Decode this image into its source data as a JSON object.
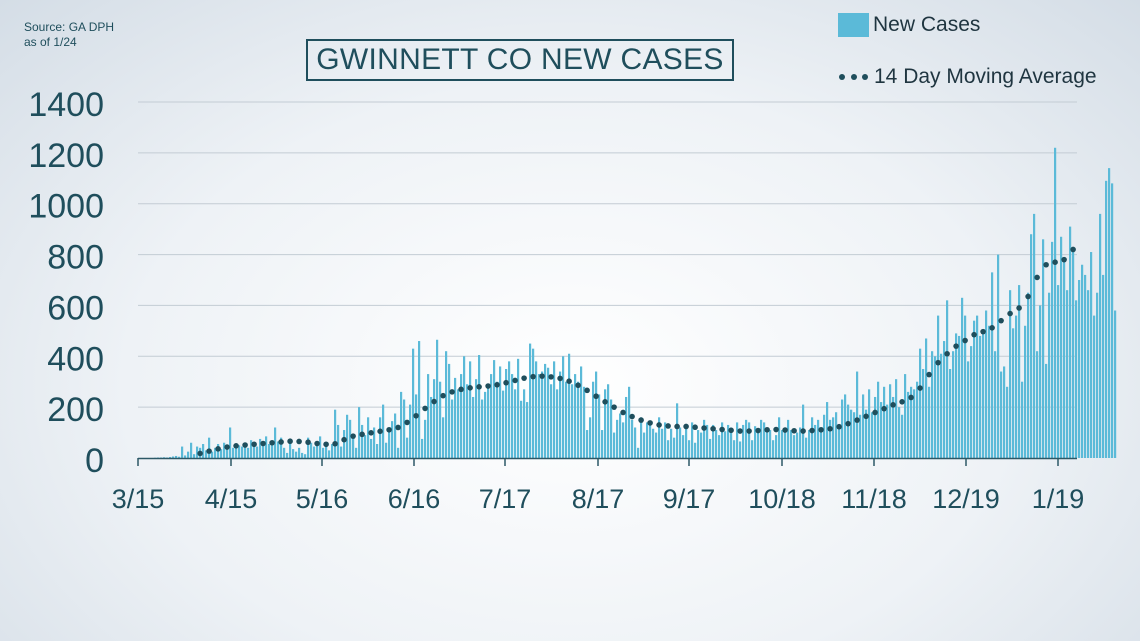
{
  "source": {
    "line1": "Source:  GA DPH",
    "line2": "as of 1/24"
  },
  "title": "GWINNETT CO NEW CASES",
  "legend": {
    "bars_label": "New Cases",
    "line_label": "14 Day Moving Average"
  },
  "colors": {
    "bars": "#5bbad8",
    "line": "#1f4e5c",
    "text": "#1f4e5c",
    "grid": "#c3ccd4"
  },
  "chart_data": {
    "type": "bar",
    "title": "GWINNETT CO NEW CASES",
    "xlabel": "",
    "ylabel": "",
    "ylim": [
      0,
      1400
    ],
    "yticks": [
      0,
      200,
      400,
      600,
      800,
      1000,
      1200,
      1400
    ],
    "xticks": [
      "3/15",
      "4/15",
      "5/16",
      "6/16",
      "7/17",
      "8/17",
      "9/17",
      "10/18",
      "11/18",
      "12/19",
      "1/19"
    ],
    "grid": true,
    "legend_position": "top-right",
    "x_start": "3/15",
    "series": [
      {
        "name": "New Cases",
        "type": "bar",
        "values": [
          1,
          2,
          2,
          3,
          2,
          4,
          6,
          8,
          5,
          45,
          10,
          25,
          60,
          15,
          45,
          40,
          55,
          30,
          80,
          25,
          40,
          55,
          35,
          60,
          45,
          120,
          40,
          55,
          50,
          45,
          60,
          40,
          70,
          50,
          45,
          75,
          60,
          85,
          55,
          60,
          120,
          65,
          80,
          40,
          20,
          60,
          35,
          25,
          40,
          20,
          15,
          80,
          60,
          45,
          50,
          85,
          40,
          60,
          30,
          55,
          190,
          130,
          45,
          110,
          170,
          150,
          90,
          40,
          200,
          130,
          90,
          160,
          75,
          120,
          55,
          160,
          210,
          60,
          110,
          145,
          175,
          40,
          260,
          230,
          80,
          210,
          430,
          250,
          460,
          75,
          150,
          330,
          240,
          310,
          465,
          300,
          160,
          420,
          370,
          230,
          315,
          270,
          330,
          400,
          290,
          380,
          240,
          310,
          405,
          230,
          260,
          290,
          330,
          385,
          300,
          360,
          265,
          350,
          380,
          330,
          270,
          390,
          225,
          270,
          220,
          450,
          430,
          380,
          330,
          340,
          370,
          355,
          290,
          380,
          270,
          340,
          400,
          300,
          410,
          290,
          330,
          300,
          360,
          280,
          110,
          160,
          300,
          340,
          250,
          110,
          270,
          290,
          230,
          100,
          150,
          175,
          140,
          240,
          280,
          150,
          120,
          40,
          160,
          100,
          140,
          130,
          115,
          100,
          160,
          115,
          140,
          70,
          115,
          80,
          215,
          120,
          90,
          130,
          70,
          140,
          60,
          110,
          100,
          150,
          130,
          75,
          130,
          110,
          90,
          140,
          105,
          130,
          120,
          70,
          140,
          65,
          130,
          150,
          140,
          70,
          125,
          100,
          150,
          140,
          120,
          110,
          70,
          90,
          160,
          110,
          120,
          150,
          110,
          90,
          100,
          120,
          210,
          80,
          110,
          160,
          130,
          150,
          120,
          170,
          220,
          150,
          160,
          180,
          130,
          230,
          250,
          210,
          190,
          180,
          340,
          170,
          250,
          190,
          270,
          180,
          240,
          300,
          220,
          280,
          210,
          290,
          240,
          310,
          200,
          170,
          330,
          260,
          280,
          270,
          300,
          430,
          350,
          470,
          280,
          420,
          400,
          560,
          410,
          460,
          620,
          350,
          420,
          490,
          480,
          630,
          560,
          380,
          440,
          540,
          560,
          480,
          500,
          580,
          520,
          730,
          420,
          800,
          340,
          360,
          280,
          660,
          510,
          560,
          680,
          300,
          520,
          650,
          880,
          960,
          420,
          600,
          860,
          370,
          650,
          850,
          1220,
          680,
          870,
          790,
          660,
          910,
          820,
          620,
          700,
          760,
          720,
          660,
          810,
          560,
          650,
          960,
          720,
          1090,
          1140,
          1080,
          580
        ]
      },
      {
        "name": "14 Day Moving Average",
        "type": "line",
        "values": [
          null,
          null,
          null,
          null,
          null,
          null,
          null,
          null,
          null,
          null,
          null,
          null,
          null,
          null,
          null,
          18,
          21,
          24,
          27,
          30,
          33,
          36,
          39,
          41,
          43,
          45,
          47,
          48,
          49,
          50,
          51,
          52,
          53,
          54,
          55,
          56,
          57,
          58,
          59,
          60,
          61,
          62,
          63,
          64,
          65,
          66,
          67,
          66,
          65,
          64,
          63,
          62,
          60,
          58,
          57,
          56,
          55,
          54,
          54,
          55,
          56,
          60,
          66,
          72,
          78,
          82,
          86,
          89,
          91,
          93,
          95,
          97,
          99,
          101,
          103,
          105,
          107,
          109,
          111,
          113,
          116,
          120,
          126,
          132,
          140,
          148,
          157,
          166,
          175,
          185,
          195,
          205,
          214,
          222,
          230,
          238,
          245,
          251,
          256,
          260,
          264,
          267,
          270,
          273,
          275,
          276,
          278,
          279,
          280,
          281,
          282,
          283,
          284,
          286,
          288,
          290,
          293,
          296,
          299,
          302,
          305,
          308,
          311,
          314,
          316,
          318,
          320,
          321,
          322,
          322,
          321,
          320,
          319,
          318,
          316,
          313,
          310,
          306,
          302,
          297,
          292,
          286,
          280,
          273,
          266,
          259,
          251,
          243,
          235,
          228,
          221,
          214,
          207,
          200,
          193,
          186,
          179,
          173,
          168,
          163,
          158,
          153,
          149,
          145,
          141,
          138,
          135,
          132,
          130,
          128,
          127,
          126,
          125,
          124,
          124,
          124,
          124,
          124,
          123,
          122,
          121,
          120,
          119,
          118,
          117,
          116,
          115,
          114,
          113,
          112,
          111,
          110,
          109,
          108,
          107,
          106,
          106,
          106,
          106,
          106,
          107,
          108,
          109,
          110,
          111,
          112,
          112,
          112,
          112,
          111,
          110,
          109,
          108,
          107,
          106,
          106,
          106,
          106,
          107,
          108,
          109,
          110,
          111,
          112,
          113,
          115,
          117,
          120,
          123,
          127,
          131,
          135,
          139,
          144,
          149,
          154,
          159,
          164,
          169,
          174,
          179,
          184,
          189,
          194,
          199,
          204,
          209,
          213,
          217,
          221,
          225,
          230,
          238,
          248,
          260,
          275,
          292,
          310,
          328,
          345,
          360,
          375,
          388,
          400,
          410,
          420,
          430,
          440,
          448,
          455,
          462,
          470,
          478,
          485,
          490,
          493,
          497,
          500,
          505,
          512,
          520,
          530,
          540,
          550,
          560,
          568,
          575,
          582,
          590,
          600,
          615,
          635,
          660,
          685,
          710,
          730,
          748,
          760,
          770,
          775,
          770,
          768,
          770,
          780,
          792,
          805,
          820,
          830,
          835
        ]
      }
    ]
  }
}
